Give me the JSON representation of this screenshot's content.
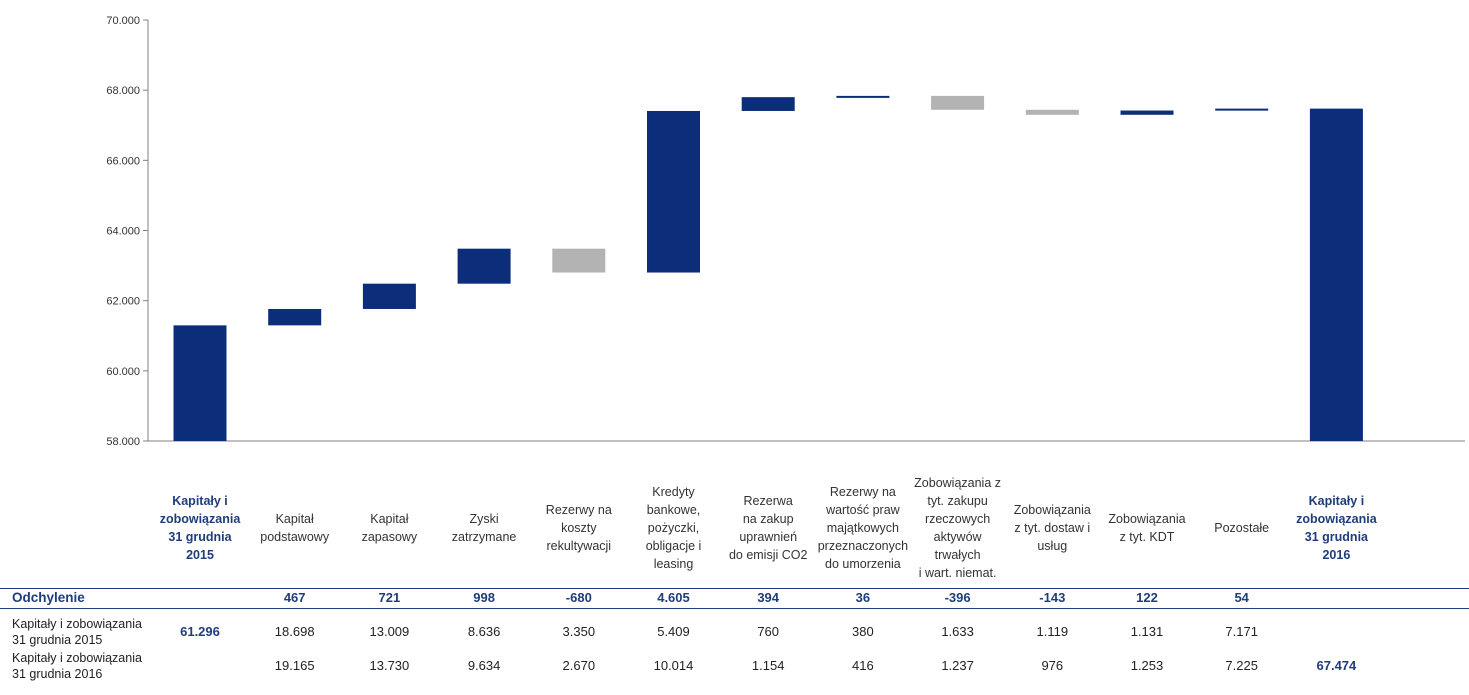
{
  "colors": {
    "up": "#0c2d7a",
    "down": "#b3b3b3",
    "total": "#0c2d7a",
    "text_accent": "#1f3d7a"
  },
  "chart_data": {
    "type": "waterfall",
    "ylim": [
      58000,
      70000
    ],
    "yticks": [
      "58.000",
      "60.000",
      "62.000",
      "64.000",
      "66.000",
      "68.000",
      "70.000"
    ],
    "categories": [
      [
        "Kapitały i",
        "zobowiązania",
        "31 grudnia",
        "2015"
      ],
      [
        "Kapitał",
        "podstawowy"
      ],
      [
        "Kapitał",
        "zapasowy"
      ],
      [
        "Zyski",
        "zatrzymane"
      ],
      [
        "Rezerwy na",
        "koszty",
        "rekultywacji"
      ],
      [
        "Kredyty",
        "bankowe,",
        "pożyczki,",
        "obligacje i",
        "leasing"
      ],
      [
        "Rezerwa",
        "na zakup",
        "uprawnień",
        "do emisji CO2"
      ],
      [
        "Rezerwy na",
        "wartość praw",
        "majątkowych",
        "przeznaczonych",
        "do umorzenia"
      ],
      [
        "Zobowiązania z",
        "tyt. zakupu",
        "rzeczowych",
        "aktywów",
        "trwałych",
        "i wart. niemat."
      ],
      [
        "Zobowiązania",
        "z tyt. dostaw i",
        "usług"
      ],
      [
        "Zobowiązania",
        "z tyt. KDT"
      ],
      [
        "Pozostałe"
      ],
      [
        "Kapitały i",
        "zobowiązania",
        "31 grudnia",
        "2016"
      ]
    ],
    "bars": [
      {
        "kind": "total",
        "bottom": 58000,
        "top": 61296
      },
      {
        "kind": "up",
        "bottom": 61296,
        "top": 61763
      },
      {
        "kind": "up",
        "bottom": 61763,
        "top": 62484
      },
      {
        "kind": "up",
        "bottom": 62484,
        "top": 63482
      },
      {
        "kind": "down",
        "bottom": 62802,
        "top": 63482
      },
      {
        "kind": "up",
        "bottom": 62802,
        "top": 67407
      },
      {
        "kind": "up",
        "bottom": 67407,
        "top": 67801
      },
      {
        "kind": "up",
        "bottom": 67801,
        "top": 67837
      },
      {
        "kind": "down",
        "bottom": 67441,
        "top": 67837
      },
      {
        "kind": "down",
        "bottom": 67298,
        "top": 67441
      },
      {
        "kind": "up",
        "bottom": 67298,
        "top": 67420
      },
      {
        "kind": "up",
        "bottom": 67420,
        "top": 67474
      },
      {
        "kind": "total",
        "bottom": 58000,
        "top": 67474
      }
    ]
  },
  "table": {
    "rows": [
      {
        "label": [
          "Odchylenie"
        ],
        "head": true,
        "cells": [
          "",
          "467",
          "721",
          "998",
          "-680",
          "4.605",
          "394",
          "36",
          "-396",
          "-143",
          "122",
          "54",
          ""
        ]
      },
      {
        "label": [
          "Kapitały i zobowiązania",
          "31 grudnia 2015"
        ],
        "head": false,
        "cells": [
          "61.296",
          "18.698",
          "13.009",
          "8.636",
          "3.350",
          "5.409",
          "760",
          "380",
          "1.633",
          "1.119",
          "1.131",
          "7.171",
          ""
        ]
      },
      {
        "label": [
          "Kapitały i zobowiązania",
          "31 grudnia 2016"
        ],
        "head": false,
        "cells": [
          "",
          "19.165",
          "13.730",
          "9.634",
          "2.670",
          "10.014",
          "1.154",
          "416",
          "1.237",
          "976",
          "1.253",
          "7.225",
          "67.474"
        ]
      }
    ]
  }
}
